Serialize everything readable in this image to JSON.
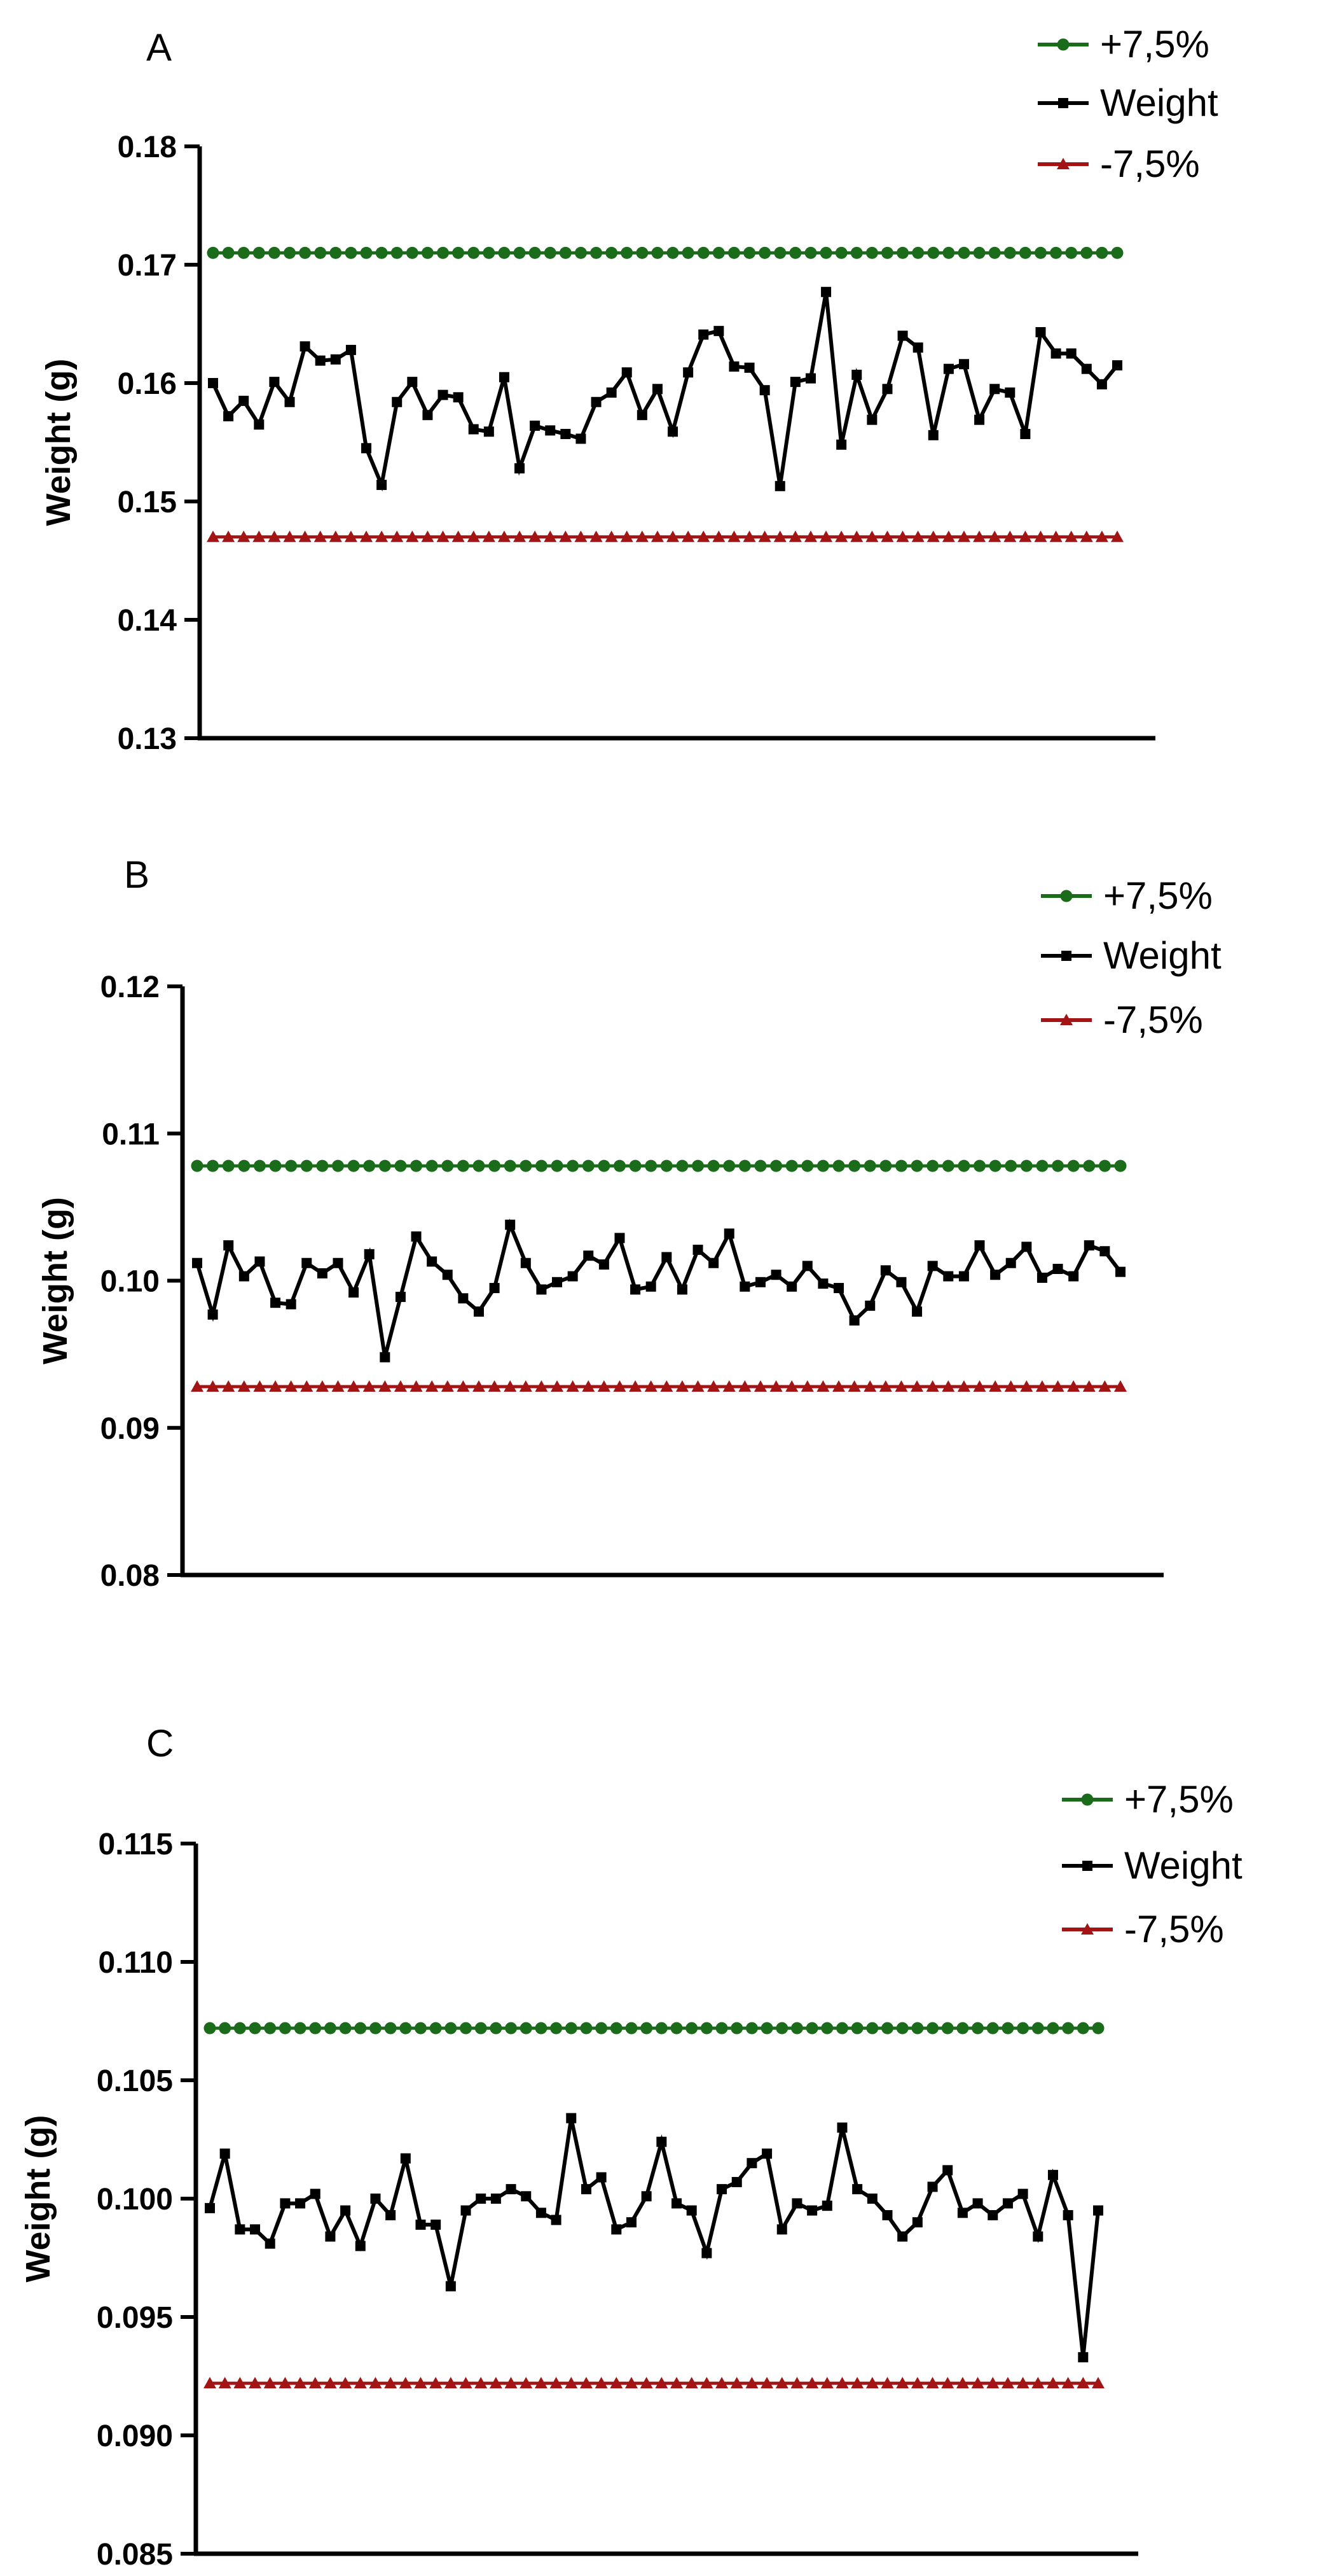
{
  "chart_data": [
    {
      "type": "line",
      "panel_label": "A",
      "ylabel": "Weight (g)",
      "xlabel": "",
      "ylim": [
        0.13,
        0.18
      ],
      "yticks": [
        "0.13",
        "0.14",
        "0.15",
        "0.16",
        "0.17",
        "0.18"
      ],
      "x_tick_labels": "none",
      "grid": false,
      "legend_position": "top-right",
      "legend": [
        "+7,5%",
        "Weight",
        "-7,5%"
      ],
      "series": [
        {
          "name": "+7,5%",
          "color": "#1a6b1a",
          "marker": "circle",
          "constant": 0.171
        },
        {
          "name": "Weight",
          "color": "#000000",
          "marker": "square",
          "values": [
            0.16,
            0.1572,
            0.1585,
            0.1565,
            0.1601,
            0.1584,
            0.1631,
            0.1619,
            0.162,
            0.1628,
            0.1545,
            0.1514,
            0.1584,
            0.1601,
            0.1573,
            0.159,
            0.1588,
            0.1561,
            0.1559,
            0.1605,
            0.1528,
            0.1564,
            0.156,
            0.1557,
            0.1553,
            0.1584,
            0.1592,
            0.1609,
            0.1573,
            0.1595,
            0.1559,
            0.1609,
            0.1641,
            0.1644,
            0.1614,
            0.1613,
            0.1594,
            0.1513,
            0.1601,
            0.1604,
            0.1677,
            0.1548,
            0.1607,
            0.1569,
            0.1595,
            0.164,
            0.163,
            0.1556,
            0.1612,
            0.1616,
            0.1569,
            0.1595,
            0.1592,
            0.1557,
            0.1643,
            0.1625,
            0.1625,
            0.1612,
            0.1599,
            0.1615
          ]
        },
        {
          "name": "-7,5%",
          "color": "#a31515",
          "marker": "triangle",
          "constant": 0.147
        }
      ]
    },
    {
      "type": "line",
      "panel_label": "B",
      "ylabel": "Weight (g)",
      "xlabel": "",
      "ylim": [
        0.08,
        0.12
      ],
      "yticks": [
        "0.08",
        "0.09",
        "0.10",
        "0.11",
        "0.12"
      ],
      "x_tick_labels": "none",
      "grid": false,
      "legend_position": "top-right",
      "legend": [
        "+7,5%",
        "Weight",
        "-7,5%"
      ],
      "series": [
        {
          "name": "+7,5%",
          "color": "#1a6b1a",
          "marker": "circle",
          "constant": 0.1078
        },
        {
          "name": "Weight",
          "color": "#000000",
          "marker": "square",
          "values": [
            0.1012,
            0.0977,
            0.1024,
            0.1003,
            0.1013,
            0.0985,
            0.0984,
            0.1012,
            0.1005,
            0.1012,
            0.0992,
            0.1018,
            0.0948,
            0.0989,
            0.103,
            0.1013,
            0.1004,
            0.0988,
            0.0979,
            0.0995,
            0.1038,
            0.1012,
            0.0994,
            0.0999,
            0.1003,
            0.1017,
            0.1011,
            0.1029,
            0.0994,
            0.0996,
            0.1016,
            0.0994,
            0.1021,
            0.1012,
            0.1032,
            0.0996,
            0.0999,
            0.1004,
            0.0996,
            0.101,
            0.0998,
            0.0995,
            0.0973,
            0.0983,
            0.1007,
            0.0999,
            0.0979,
            0.101,
            0.1003,
            0.1003,
            0.1024,
            0.1004,
            0.1012,
            0.1023,
            0.1002,
            0.1008,
            0.1003,
            0.1024,
            0.102,
            0.1006
          ]
        },
        {
          "name": "-7,5%",
          "color": "#a31515",
          "marker": "triangle",
          "constant": 0.0928
        }
      ]
    },
    {
      "type": "line",
      "panel_label": "C",
      "ylabel": "Weight (g)",
      "xlabel": "",
      "ylim": [
        0.085,
        0.115
      ],
      "yticks": [
        "0.085",
        "0.090",
        "0.095",
        "0.100",
        "0.105",
        "0.110",
        "0.115"
      ],
      "x_tick_labels": "none",
      "grid": false,
      "legend_position": "top-right",
      "legend": [
        "+7,5%",
        "Weight",
        "-7,5%"
      ],
      "series": [
        {
          "name": "+7,5%",
          "color": "#1a6b1a",
          "marker": "circle",
          "constant": 0.1072
        },
        {
          "name": "Weight",
          "color": "#000000",
          "marker": "square",
          "values": [
            0.0996,
            0.1019,
            0.0987,
            0.0987,
            0.0981,
            0.0998,
            0.0998,
            0.1002,
            0.0984,
            0.0995,
            0.098,
            0.1,
            0.0993,
            0.1017,
            0.0989,
            0.0989,
            0.0963,
            0.0995,
            0.1,
            0.1,
            0.1004,
            0.1001,
            0.0994,
            0.0991,
            0.1034,
            0.1004,
            0.1009,
            0.0987,
            0.099,
            0.1001,
            0.1024,
            0.0998,
            0.0995,
            0.0977,
            0.1004,
            0.1007,
            0.1015,
            0.1019,
            0.0987,
            0.0998,
            0.0995,
            0.0997,
            0.103,
            0.1004,
            0.1,
            0.0993,
            0.0984,
            0.099,
            0.1005,
            0.1012,
            0.0994,
            0.0998,
            0.0993,
            0.0998,
            0.1002,
            0.0984,
            0.101,
            0.0993,
            0.0933,
            0.0995
          ]
        },
        {
          "name": "-7,5%",
          "color": "#a31515",
          "marker": "triangle",
          "constant": 0.0922
        }
      ]
    }
  ]
}
